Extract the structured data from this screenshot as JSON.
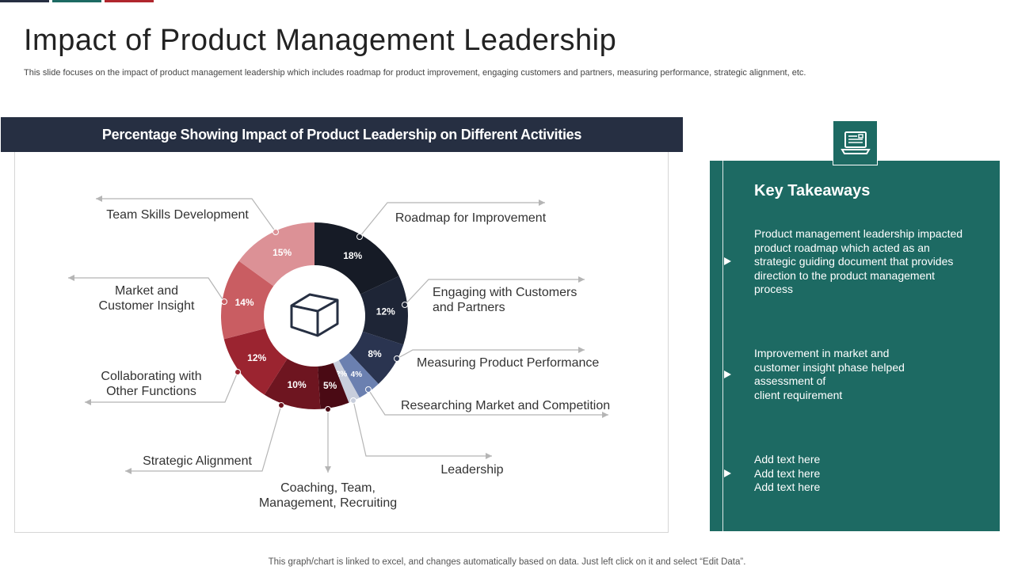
{
  "page": {
    "title": "Impact of Product Management Leadership",
    "subtitle": "This slide focuses on the impact of product management leadership which includes roadmap for product improvement, engaging customers and partners, measuring performance, strategic alignment, etc.",
    "footer": "This graph/chart is linked to excel,  and changes automatically based on data. Just left click on it and select “Edit Data”.",
    "top_strip_colors": [
      "#262f42",
      "#1d6a63",
      "#b0262d"
    ]
  },
  "chart_data": {
    "type": "pie",
    "style": "donut",
    "title": "Percentage Showing Impact of Product Leadership on Different Activities",
    "center_icon": "box-icon",
    "slices": [
      {
        "label": "Roadmap for Improvement",
        "value": 18,
        "value_label": "18%",
        "color": "#161b26"
      },
      {
        "label": "Engaging with Customers\nand Partners",
        "value": 12,
        "value_label": "12%",
        "color": "#1e2536"
      },
      {
        "label": "Measuring Product Performance",
        "value": 8,
        "value_label": "8%",
        "color": "#2a3450"
      },
      {
        "label": "Researching Market and Competition",
        "value": 4,
        "value_label": "4%",
        "color": "#6b80b0"
      },
      {
        "label": "Leadership",
        "value": 2,
        "value_label": "2%",
        "color": "#c8cedc"
      },
      {
        "label": "Coaching, Team,\nManagement, Recruiting",
        "value": 5,
        "value_label": "5%",
        "color": "#4a0a14"
      },
      {
        "label": "Strategic Alignment",
        "value": 10,
        "value_label": "10%",
        "color": "#6e1520"
      },
      {
        "label": "Collaborating with\nOther Functions",
        "value": 12,
        "value_label": "12%",
        "color": "#9b2430"
      },
      {
        "label": "Market and\nCustomer Insight",
        "value": 14,
        "value_label": "14%",
        "color": "#c95d62"
      },
      {
        "label": "Team Skills Development",
        "value": 15,
        "value_label": "15%",
        "color": "#dc9196"
      }
    ]
  },
  "takeaways": {
    "title": "Key Takeaways",
    "icon": "laptop-document-icon",
    "items": [
      "Product management leadership impacted product roadmap which acted as an strategic guiding document that provides direction to the product management process",
      "Improvement in market and\ncustomer insight phase helped\nassessment of\nclient requirement",
      "Add text here\nAdd text here\nAdd text here"
    ]
  }
}
